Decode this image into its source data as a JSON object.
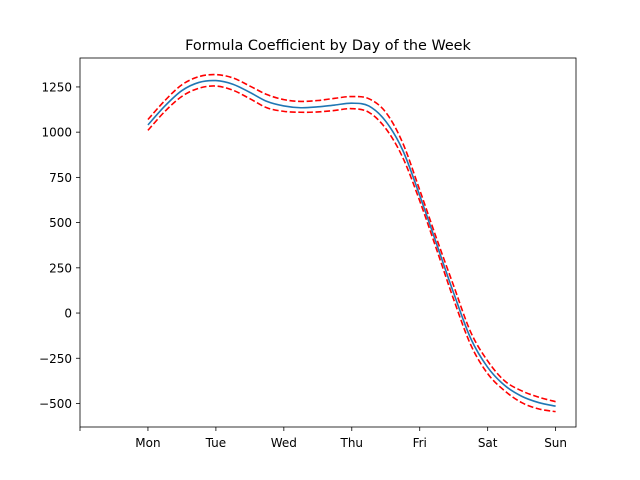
{
  "chart_data": {
    "type": "line",
    "title": "Formula Coefficient by Day of the Week",
    "xlabel": "",
    "ylabel": "",
    "categories": [
      "Mon",
      "Tue",
      "Wed",
      "Thu",
      "Fri",
      "Sat",
      "Sun"
    ],
    "x_ticks": [
      "",
      "Mon",
      "Tue",
      "Wed",
      "Thu",
      "Fri",
      "Sat",
      "Sun"
    ],
    "y_ticks": [
      "1250",
      "1000",
      "750",
      "500",
      "250",
      "0",
      "−250",
      "−500"
    ],
    "xlim": [
      -1,
      6.3
    ],
    "ylim": [
      -630,
      1410
    ],
    "grid": false,
    "series": [
      {
        "style": "solid",
        "color": "#1f77b4",
        "x": [
          0,
          0.25,
          0.5,
          0.75,
          1,
          1.25,
          1.5,
          1.75,
          2,
          2.25,
          2.5,
          2.75,
          3,
          3.25,
          3.5,
          3.75,
          4,
          4.25,
          4.5,
          4.75,
          5,
          5.25,
          5.5,
          5.75,
          6
        ],
        "y": [
          1040,
          1145,
          1230,
          1275,
          1285,
          1265,
          1220,
          1170,
          1145,
          1135,
          1140,
          1150,
          1160,
          1145,
          1060,
          900,
          650,
          380,
          110,
          -140,
          -300,
          -400,
          -460,
          -495,
          -515
        ]
      },
      {
        "style": "dashed",
        "color": "#ff0000",
        "x": [
          0,
          0.25,
          0.5,
          0.75,
          1,
          1.25,
          1.5,
          1.75,
          2,
          2.25,
          2.5,
          2.75,
          3,
          3.25,
          3.5,
          3.75,
          4,
          4.25,
          4.5,
          4.75,
          5,
          5.25,
          5.5,
          5.75,
          6
        ],
        "y": [
          1070,
          1175,
          1262,
          1307,
          1318,
          1300,
          1255,
          1208,
          1180,
          1170,
          1175,
          1187,
          1197,
          1185,
          1110,
          940,
          680,
          410,
          150,
          -105,
          -265,
          -375,
          -430,
          -465,
          -490
        ]
      },
      {
        "style": "dashed",
        "color": "#ff0000",
        "x": [
          0,
          0.25,
          0.5,
          0.75,
          1,
          1.25,
          1.5,
          1.75,
          2,
          2.25,
          2.5,
          2.75,
          3,
          3.25,
          3.5,
          3.75,
          4,
          4.25,
          4.5,
          4.75,
          5,
          5.25,
          5.5,
          5.75,
          6
        ],
        "y": [
          1010,
          1115,
          1198,
          1243,
          1255,
          1232,
          1185,
          1135,
          1115,
          1110,
          1112,
          1120,
          1130,
          1110,
          1020,
          860,
          620,
          350,
          75,
          -175,
          -335,
          -430,
          -495,
          -530,
          -545
        ]
      }
    ]
  }
}
